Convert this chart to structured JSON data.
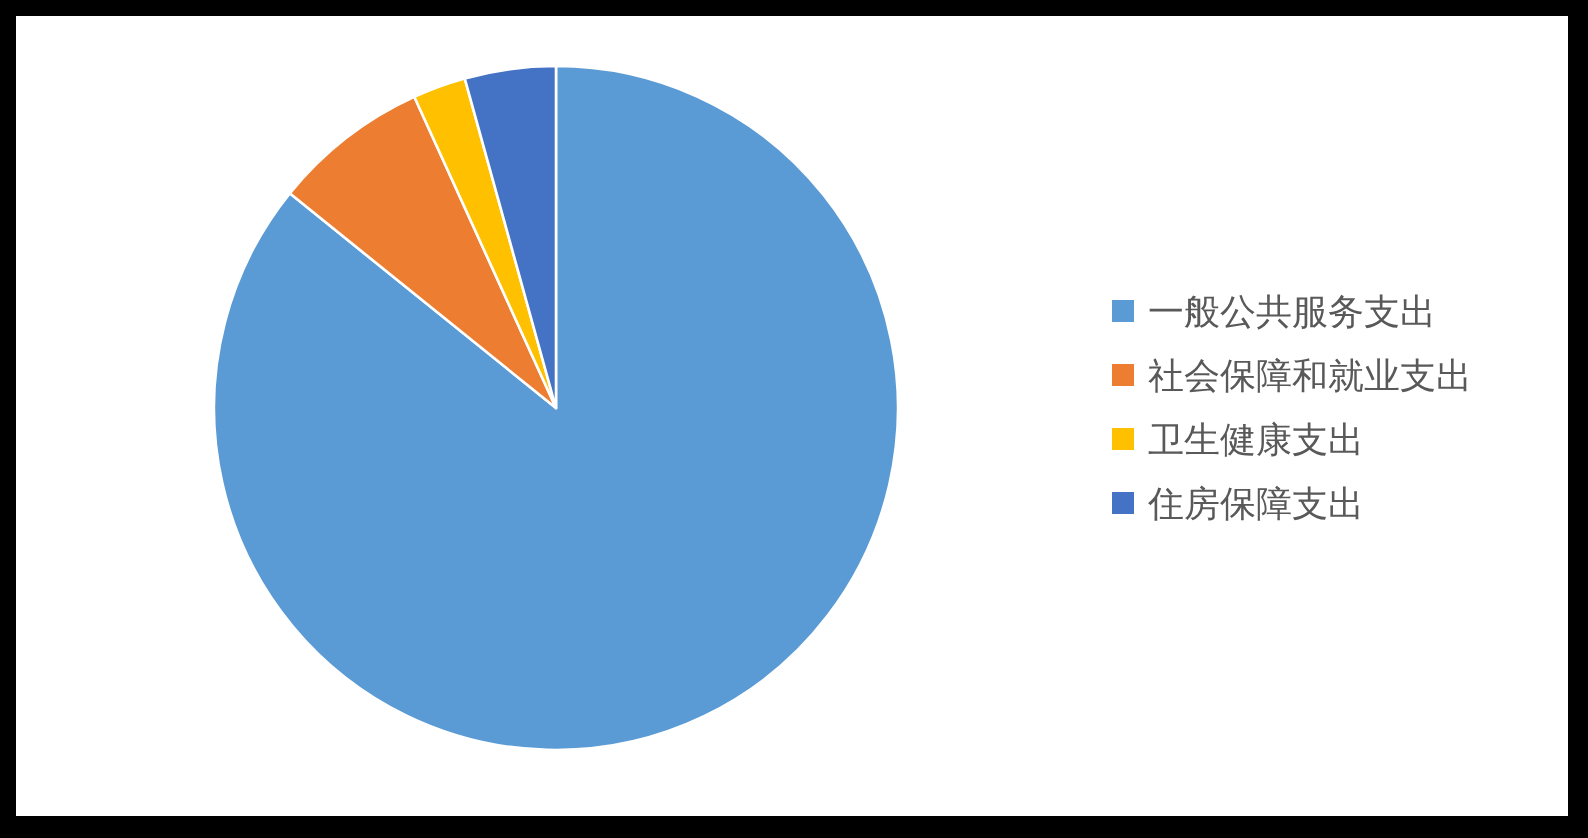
{
  "chart_data": {
    "type": "pie",
    "categories": [
      "一般公共服务支出",
      "社会保障和就业支出",
      "卫生健康支出",
      "住房保障支出"
    ],
    "values": [
      85.8,
      7.4,
      2.5,
      4.3
    ],
    "colors": [
      "#5b9bd5",
      "#ed7d31",
      "#ffc000",
      "#4472c4"
    ],
    "legend": "right"
  }
}
